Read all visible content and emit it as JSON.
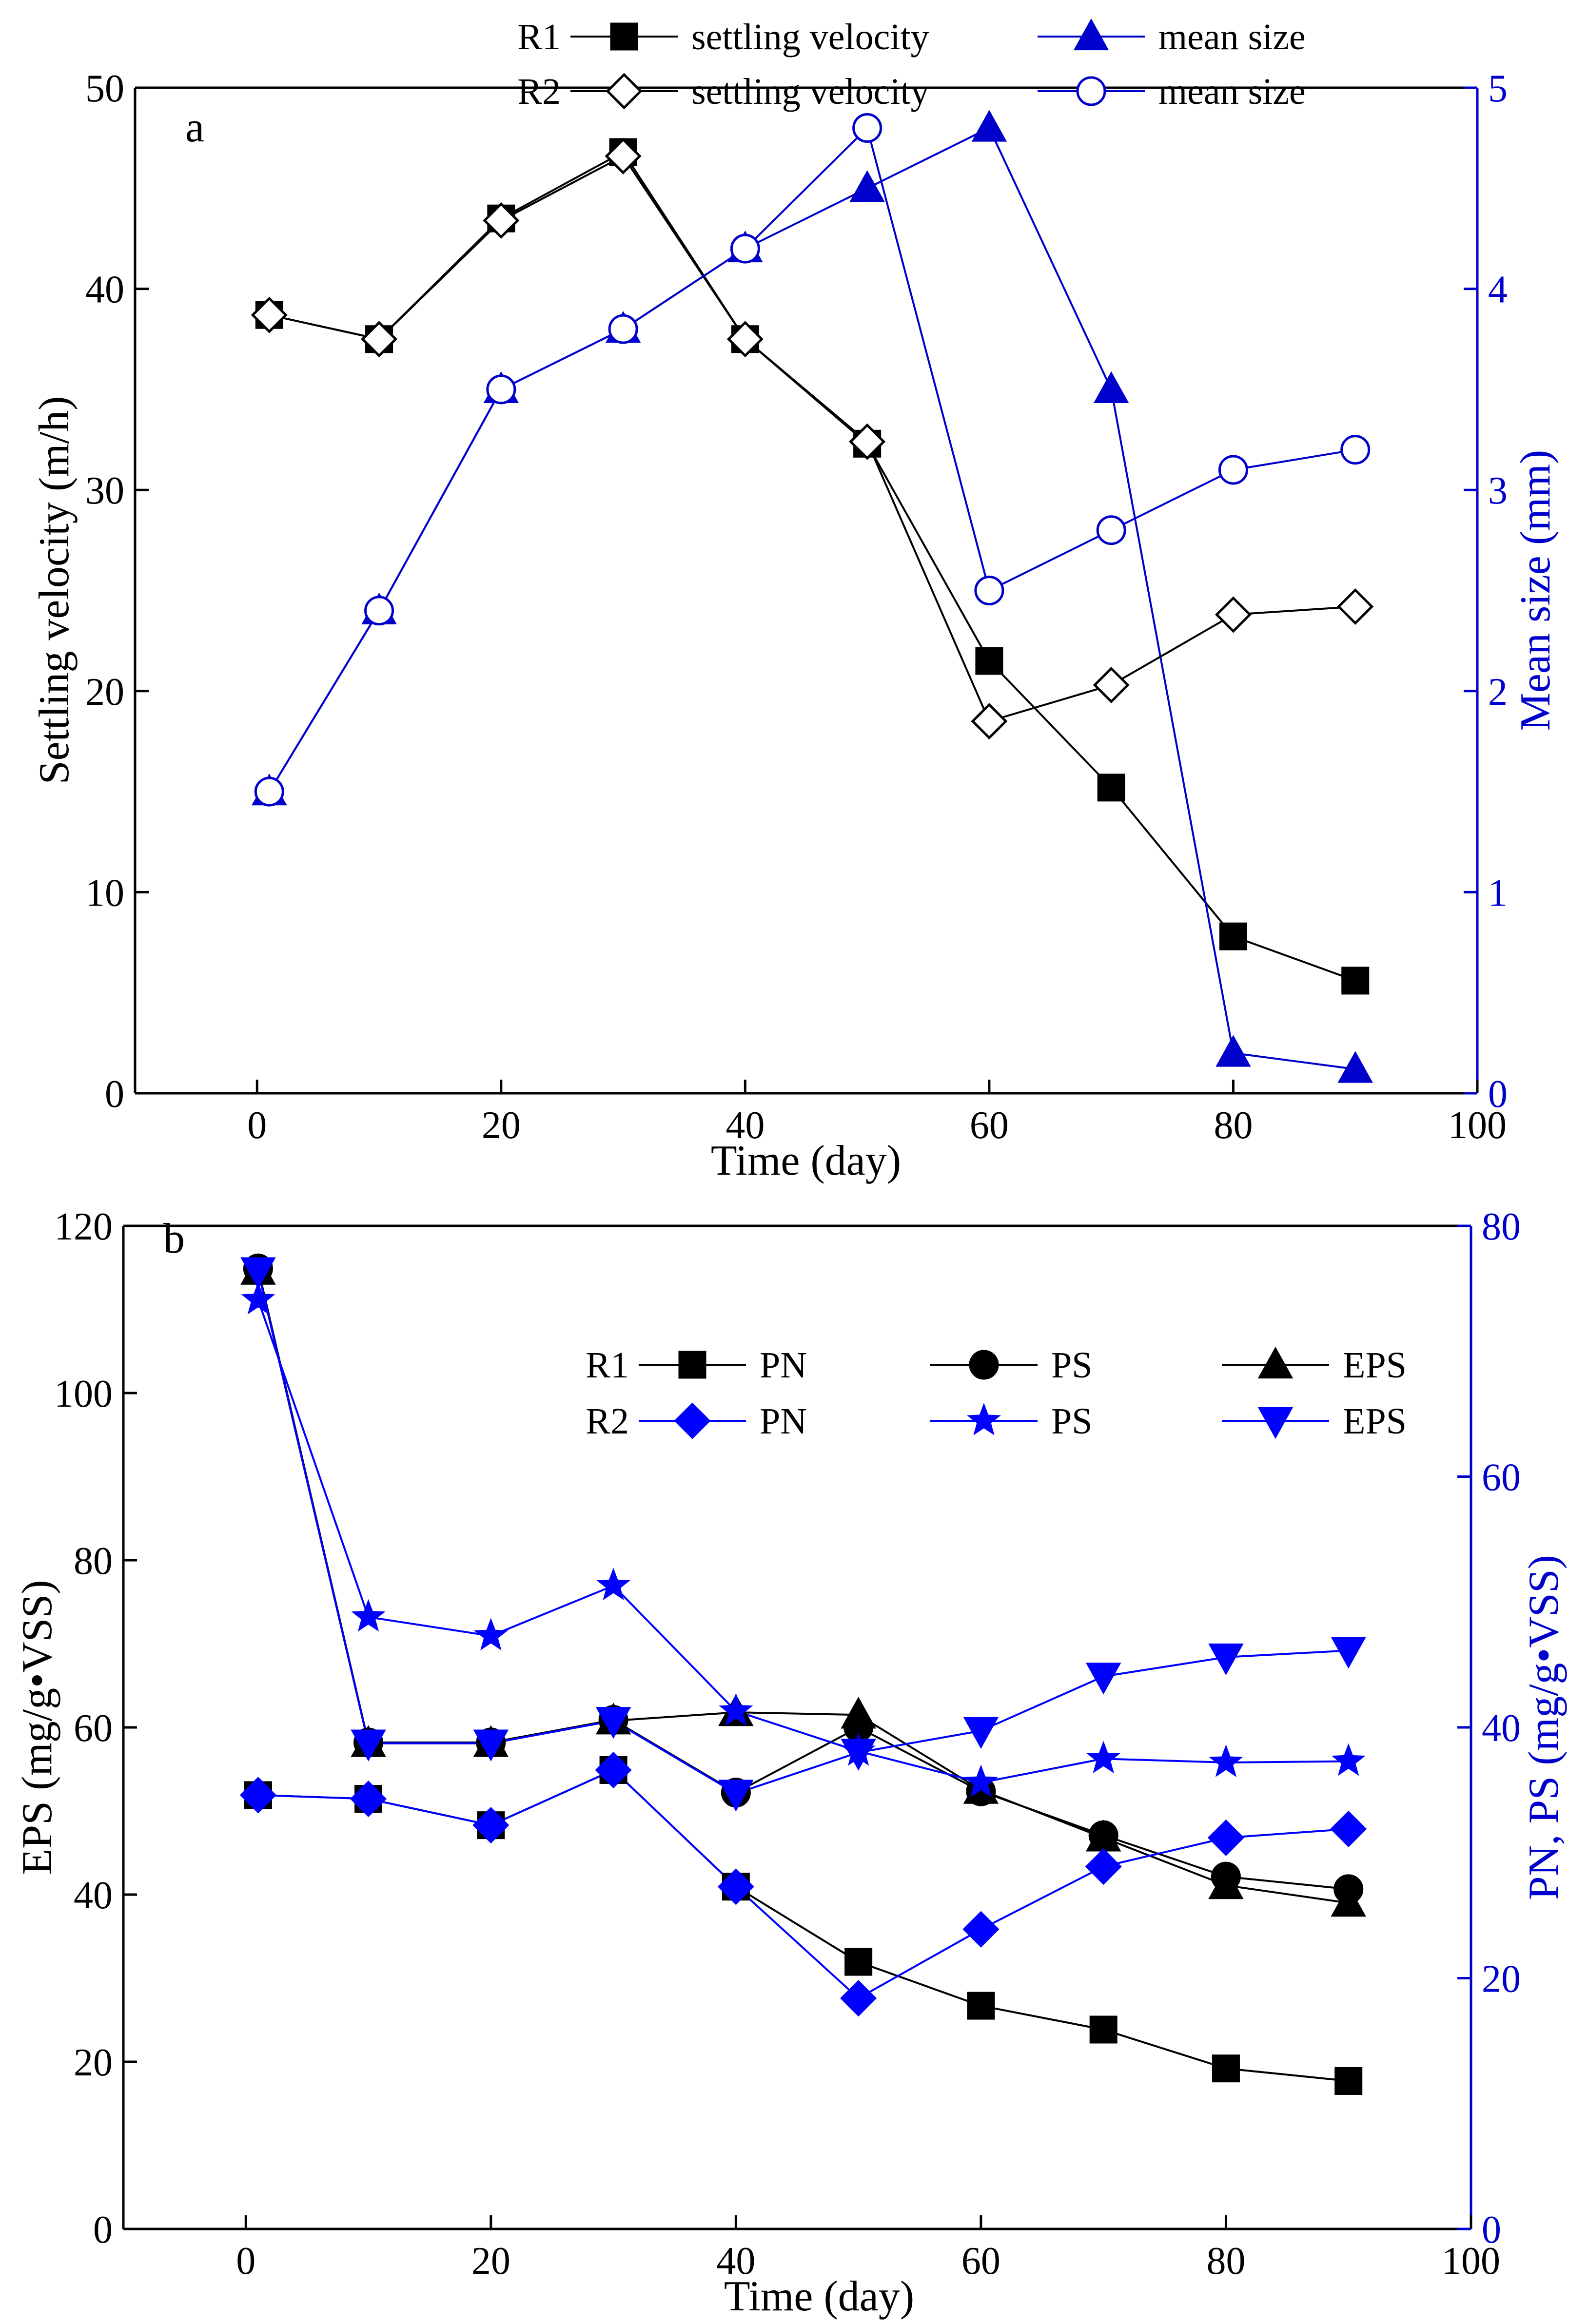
{
  "chart_data": [
    {
      "panel": "a",
      "type": "line",
      "xlabel": "Time (day)",
      "ylabel": "Settling velocity (m/h)",
      "y2label": "Mean size (mm)",
      "xlim": [
        -10,
        100
      ],
      "ylim": [
        0,
        50
      ],
      "y2lim": [
        0,
        5
      ],
      "xticks": [
        0,
        20,
        40,
        60,
        80,
        100
      ],
      "yticks": [
        0,
        10,
        20,
        30,
        40,
        50
      ],
      "y2ticks": [
        0,
        1,
        2,
        3,
        4,
        5
      ],
      "legend": {
        "rows": [
          {
            "group": "R1",
            "items": [
              {
                "series": 0,
                "label": "settling velocity"
              },
              {
                "series": 1,
                "label": "mean size"
              }
            ]
          },
          {
            "group": "R2",
            "items": [
              {
                "series": 2,
                "label": "settling velocity"
              },
              {
                "series": 3,
                "label": "mean size"
              }
            ]
          }
        ]
      },
      "series": [
        {
          "name": "R1 settling velocity",
          "axis": "left",
          "color": "#000000",
          "marker": "square",
          "filled": true,
          "x": [
            1,
            10,
            20,
            30,
            40,
            50,
            60,
            70,
            80,
            90
          ],
          "y": [
            38.7,
            37.5,
            43.5,
            46.8,
            37.5,
            32.3,
            21.5,
            15.2,
            7.8,
            5.6
          ]
        },
        {
          "name": "R1 mean size",
          "axis": "right",
          "color": "#0000cc",
          "marker": "triangle-up",
          "filled": true,
          "x": [
            1,
            10,
            20,
            30,
            40,
            50,
            60,
            70,
            80,
            90
          ],
          "y": [
            1.5,
            2.4,
            3.5,
            3.8,
            4.2,
            4.5,
            4.8,
            3.5,
            0.2,
            0.12
          ]
        },
        {
          "name": "R2 settling velocity",
          "axis": "left",
          "color": "#000000",
          "marker": "diamond",
          "filled": false,
          "x": [
            1,
            10,
            20,
            30,
            40,
            50,
            60,
            70,
            80,
            90
          ],
          "y": [
            38.7,
            37.5,
            43.4,
            46.6,
            37.5,
            32.4,
            18.5,
            20.3,
            23.8,
            24.2
          ]
        },
        {
          "name": "R2 mean size",
          "axis": "right",
          "color": "#0000cc",
          "marker": "circle",
          "filled": false,
          "x": [
            1,
            10,
            20,
            30,
            40,
            50,
            60,
            70,
            80,
            90
          ],
          "y": [
            1.5,
            2.4,
            3.5,
            3.8,
            4.2,
            4.8,
            2.5,
            2.8,
            3.1,
            3.2
          ]
        }
      ]
    },
    {
      "panel": "b",
      "type": "line",
      "xlabel": "Time (day)",
      "ylabel": "EPS (mg/g•VSS)",
      "y2label": "PN, PS (mg/g•VSS)",
      "xlim": [
        -10,
        100
      ],
      "ylim": [
        0,
        120
      ],
      "y2lim": [
        0,
        80
      ],
      "xticks": [
        0,
        20,
        40,
        60,
        80,
        100
      ],
      "yticks": [
        0,
        20,
        40,
        60,
        80,
        100,
        120
      ],
      "y2ticks": [
        0,
        20,
        40,
        60,
        80
      ],
      "legend": {
        "rows": [
          {
            "group": "R1",
            "items": [
              {
                "series": 0,
                "label": "PN"
              },
              {
                "series": 1,
                "label": "PS"
              },
              {
                "series": 2,
                "label": "EPS"
              }
            ]
          },
          {
            "group": "R2",
            "items": [
              {
                "series": 3,
                "label": "PN"
              },
              {
                "series": 4,
                "label": "PS"
              },
              {
                "series": 5,
                "label": "EPS"
              }
            ]
          }
        ]
      },
      "series": [
        {
          "name": "R1 PN",
          "axis": "right",
          "color": "#000000",
          "marker": "square",
          "filled": true,
          "x": [
            1,
            10,
            20,
            30,
            40,
            50,
            60,
            70,
            80,
            90
          ],
          "y": [
            34.6,
            34.3,
            32.2,
            36.6,
            27.3,
            21.3,
            17.8,
            15.9,
            12.8,
            11.8
          ]
        },
        {
          "name": "R1 PS",
          "axis": "right",
          "color": "#000000",
          "marker": "circle",
          "filled": true,
          "x": [
            1,
            10,
            20,
            30,
            40,
            50,
            60,
            70,
            80,
            90
          ],
          "y": [
            76.6,
            38.8,
            38.8,
            40.6,
            34.8,
            40.0,
            34.9,
            31.4,
            28.1,
            27.1
          ]
        },
        {
          "name": "R1 EPS",
          "axis": "left",
          "color": "#000000",
          "marker": "triangle-up",
          "filled": true,
          "x": [
            1,
            10,
            20,
            30,
            40,
            50,
            60,
            70,
            80,
            90
          ],
          "y": [
            114.6,
            58.1,
            58.1,
            60.8,
            61.8,
            61.5,
            52.5,
            46.8,
            41.1,
            39.0
          ]
        },
        {
          "name": "R2 PN",
          "axis": "right",
          "color": "#0000ff",
          "marker": "diamond",
          "filled": true,
          "x": [
            1,
            10,
            20,
            30,
            40,
            50,
            60,
            70,
            80,
            90
          ],
          "y": [
            34.6,
            34.3,
            32.2,
            36.6,
            27.3,
            18.4,
            23.9,
            28.9,
            31.2,
            31.9
          ]
        },
        {
          "name": "R2 PS",
          "axis": "right",
          "color": "#0000ff",
          "marker": "star",
          "filled": true,
          "x": [
            1,
            10,
            20,
            30,
            40,
            50,
            60,
            70,
            80,
            90
          ],
          "y": [
            74.1,
            48.8,
            47.3,
            51.3,
            41.3,
            38.1,
            35.6,
            37.5,
            37.2,
            37.3
          ]
        },
        {
          "name": "R2 EPS",
          "axis": "left",
          "color": "#0000ff",
          "marker": "triangle-down",
          "filled": true,
          "x": [
            1,
            10,
            20,
            30,
            40,
            50,
            60,
            70,
            80,
            90
          ],
          "y": [
            114.6,
            58.1,
            58.1,
            60.8,
            52.1,
            57.0,
            59.6,
            66.1,
            68.4,
            69.2
          ]
        }
      ]
    }
  ]
}
